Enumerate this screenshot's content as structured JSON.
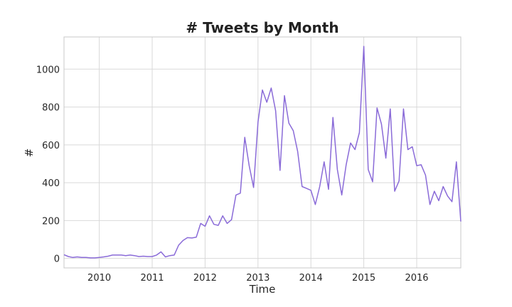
{
  "chart_data": {
    "type": "line",
    "title": "# Tweets by Month",
    "xlabel": "Time",
    "ylabel": "#",
    "xlim": [
      "2009-05",
      "2016-11"
    ],
    "ylim": [
      -50,
      1170
    ],
    "grid": true,
    "line_color": "#8A6BD8",
    "x_ticks": [
      "2010",
      "2011",
      "2012",
      "2013",
      "2014",
      "2015",
      "2016"
    ],
    "y_ticks": [
      0,
      200,
      400,
      600,
      800,
      1000
    ],
    "series": [
      {
        "x": [
          "2009-05",
          "2009-06",
          "2009-07",
          "2009-08",
          "2009-09",
          "2009-10",
          "2009-11",
          "2009-12",
          "2010-01",
          "2010-02",
          "2010-03",
          "2010-04",
          "2010-05",
          "2010-06",
          "2010-07",
          "2010-08",
          "2010-09",
          "2010-10",
          "2010-11",
          "2010-12",
          "2011-01",
          "2011-02",
          "2011-03",
          "2011-04",
          "2011-05",
          "2011-06",
          "2011-07",
          "2011-08",
          "2011-09",
          "2011-10",
          "2011-11",
          "2011-12",
          "2012-01",
          "2012-02",
          "2012-03",
          "2012-04",
          "2012-05",
          "2012-06",
          "2012-07",
          "2012-08",
          "2012-09",
          "2012-10",
          "2012-11",
          "2012-12",
          "2013-01",
          "2013-02",
          "2013-03",
          "2013-04",
          "2013-05",
          "2013-06",
          "2013-07",
          "2013-08",
          "2013-09",
          "2013-10",
          "2013-11",
          "2013-12",
          "2014-01",
          "2014-02",
          "2014-03",
          "2014-04",
          "2014-05",
          "2014-06",
          "2014-07",
          "2014-08",
          "2014-09",
          "2014-10",
          "2014-11",
          "2014-12",
          "2015-01",
          "2015-02",
          "2015-03",
          "2015-04",
          "2015-05",
          "2015-06",
          "2015-07",
          "2015-08",
          "2015-09",
          "2015-10",
          "2015-11",
          "2015-12",
          "2016-01",
          "2016-02",
          "2016-03",
          "2016-04",
          "2016-05",
          "2016-06",
          "2016-07",
          "2016-08",
          "2016-09",
          "2016-10",
          "2016-11"
        ],
        "values": [
          20,
          10,
          5,
          8,
          5,
          5,
          3,
          3,
          5,
          8,
          12,
          18,
          18,
          18,
          15,
          18,
          15,
          10,
          12,
          10,
          10,
          18,
          35,
          8,
          15,
          18,
          70,
          95,
          110,
          108,
          112,
          185,
          170,
          225,
          180,
          175,
          225,
          185,
          205,
          335,
          345,
          640,
          490,
          375,
          720,
          890,
          825,
          900,
          780,
          465,
          860,
          715,
          675,
          565,
          380,
          370,
          360,
          285,
          380,
          510,
          365,
          745,
          470,
          335,
          495,
          610,
          575,
          665,
          1120,
          470,
          405,
          795,
          710,
          530,
          790,
          355,
          410,
          790,
          575,
          590,
          490,
          495,
          440,
          285,
          355,
          305,
          380,
          330,
          300,
          510,
          195
        ]
      }
    ]
  }
}
